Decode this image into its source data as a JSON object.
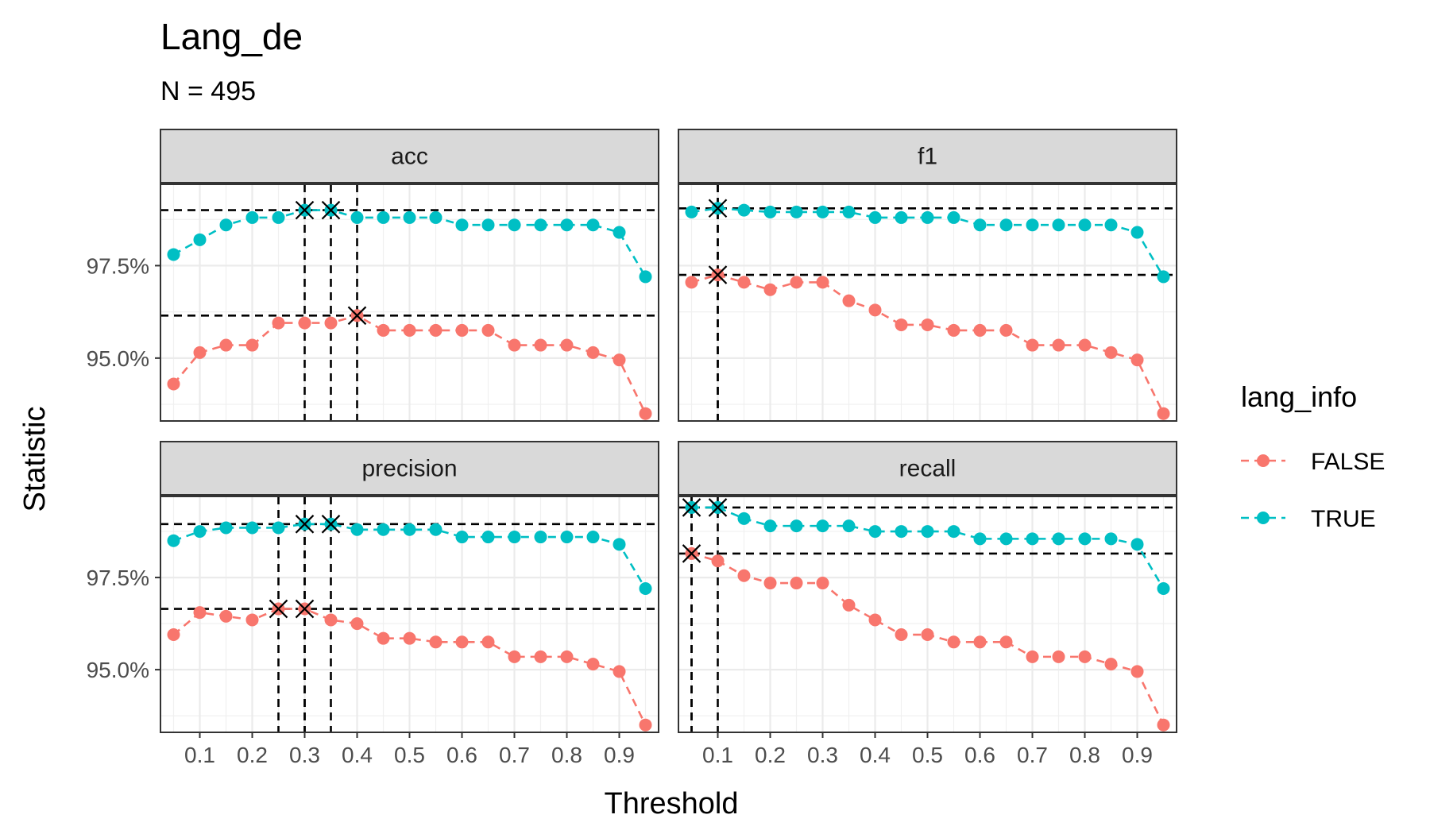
{
  "chart_data": {
    "type": "line",
    "title": "Lang_de",
    "subtitle": "N = 495",
    "xlabel": "Threshold",
    "ylabel": "Statistic",
    "x": [
      0.05,
      0.1,
      0.15,
      0.2,
      0.25,
      0.3,
      0.35,
      0.4,
      0.45,
      0.5,
      0.55,
      0.6,
      0.65,
      0.7,
      0.75,
      0.8,
      0.85,
      0.9,
      0.95
    ],
    "x_ticks": [
      0.1,
      0.2,
      0.3,
      0.4,
      0.5,
      0.6,
      0.7,
      0.8,
      0.9
    ],
    "x_tick_labels": [
      "0.1",
      "0.2",
      "0.3",
      "0.4",
      "0.5",
      "0.6",
      "0.7",
      "0.8",
      "0.9"
    ],
    "xlim": [
      0.025,
      0.975
    ],
    "y_ticks": [
      95.0,
      97.5
    ],
    "y_tick_labels": [
      "95.0%",
      "97.5%"
    ],
    "ylim": [
      93.3,
      99.7
    ],
    "grid": true,
    "legend": {
      "title": "lang_info",
      "placement": "right",
      "entries": [
        {
          "name": "FALSE",
          "color": "#F8766D"
        },
        {
          "name": "TRUE",
          "color": "#00BFC4"
        }
      ]
    },
    "colors": {
      "FALSE": "#F8766D",
      "TRUE": "#00BFC4"
    },
    "facets": [
      {
        "name": "acc",
        "series": [
          {
            "name": "FALSE",
            "values": [
              94.3,
              95.15,
              95.35,
              95.35,
              95.95,
              95.95,
              95.95,
              96.15,
              95.75,
              95.75,
              95.75,
              95.75,
              95.75,
              95.35,
              95.35,
              95.35,
              95.15,
              94.95,
              93.5
            ]
          },
          {
            "name": "TRUE",
            "values": [
              97.8,
              98.2,
              98.6,
              98.8,
              98.8,
              99.0,
              99.0,
              98.8,
              98.8,
              98.8,
              98.8,
              98.6,
              98.6,
              98.6,
              98.6,
              98.6,
              98.6,
              98.4,
              97.2
            ]
          }
        ],
        "best": [
          {
            "series": "FALSE",
            "x": [
              0.4
            ],
            "y": 96.15
          },
          {
            "series": "TRUE",
            "x": [
              0.3,
              0.35
            ],
            "y": 99.0
          }
        ]
      },
      {
        "name": "f1",
        "series": [
          {
            "name": "FALSE",
            "values": [
              97.05,
              97.25,
              97.05,
              96.85,
              97.05,
              97.05,
              96.55,
              96.3,
              95.9,
              95.9,
              95.75,
              95.75,
              95.75,
              95.35,
              95.35,
              95.35,
              95.15,
              94.95,
              93.5
            ]
          },
          {
            "name": "TRUE",
            "values": [
              98.95,
              99.05,
              99.0,
              98.95,
              98.95,
              98.95,
              98.95,
              98.8,
              98.8,
              98.8,
              98.8,
              98.6,
              98.6,
              98.6,
              98.6,
              98.6,
              98.6,
              98.4,
              97.2
            ]
          }
        ],
        "best": [
          {
            "series": "FALSE",
            "x": [
              0.1
            ],
            "y": 97.25
          },
          {
            "series": "TRUE",
            "x": [
              0.1
            ],
            "y": 99.05
          }
        ]
      },
      {
        "name": "precision",
        "series": [
          {
            "name": "FALSE",
            "values": [
              95.95,
              96.55,
              96.45,
              96.35,
              96.65,
              96.65,
              96.35,
              96.25,
              95.85,
              95.85,
              95.75,
              95.75,
              95.75,
              95.35,
              95.35,
              95.35,
              95.15,
              94.95,
              93.5
            ]
          },
          {
            "name": "TRUE",
            "values": [
              98.5,
              98.75,
              98.85,
              98.85,
              98.85,
              98.95,
              98.95,
              98.8,
              98.8,
              98.8,
              98.8,
              98.6,
              98.6,
              98.6,
              98.6,
              98.6,
              98.6,
              98.4,
              97.2
            ]
          }
        ],
        "best": [
          {
            "series": "FALSE",
            "x": [
              0.25,
              0.3
            ],
            "y": 96.65
          },
          {
            "series": "TRUE",
            "x": [
              0.3,
              0.35
            ],
            "y": 98.95
          }
        ]
      },
      {
        "name": "recall",
        "series": [
          {
            "name": "FALSE",
            "values": [
              98.15,
              97.95,
              97.55,
              97.35,
              97.35,
              97.35,
              96.75,
              96.35,
              95.95,
              95.95,
              95.75,
              95.75,
              95.75,
              95.35,
              95.35,
              95.35,
              95.15,
              94.95,
              93.5
            ]
          },
          {
            "name": "TRUE",
            "values": [
              99.4,
              99.4,
              99.1,
              98.9,
              98.9,
              98.9,
              98.9,
              98.75,
              98.75,
              98.75,
              98.75,
              98.55,
              98.55,
              98.55,
              98.55,
              98.55,
              98.55,
              98.4,
              97.2
            ]
          }
        ],
        "best": [
          {
            "series": "FALSE",
            "x": [
              0.05
            ],
            "y": 98.15
          },
          {
            "series": "TRUE",
            "x": [
              0.05,
              0.1
            ],
            "y": 99.4
          }
        ]
      }
    ]
  }
}
